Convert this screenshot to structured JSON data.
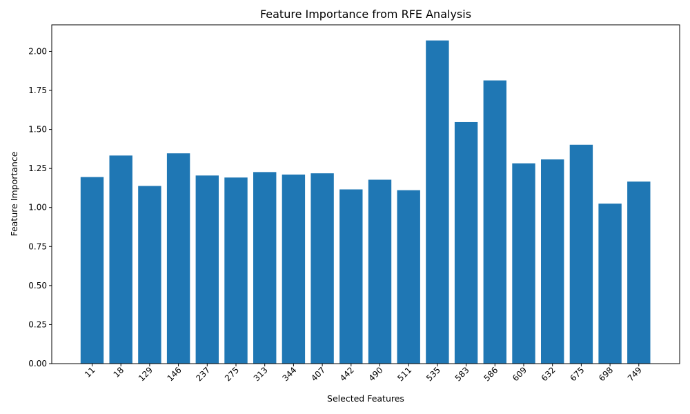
{
  "chart_data": {
    "type": "bar",
    "title": "Feature Importance from RFE Analysis",
    "xlabel": "Selected Features",
    "ylabel": "Feature Importance",
    "categories": [
      "11",
      "18",
      "129",
      "146",
      "237",
      "275",
      "313",
      "344",
      "407",
      "442",
      "490",
      "511",
      "535",
      "583",
      "586",
      "609",
      "632",
      "675",
      "698",
      "749"
    ],
    "values": [
      1.195,
      1.333,
      1.138,
      1.347,
      1.205,
      1.192,
      1.227,
      1.211,
      1.219,
      1.116,
      1.178,
      1.111,
      2.07,
      1.547,
      1.814,
      1.283,
      1.308,
      1.402,
      1.025,
      1.166
    ],
    "ylim": [
      0,
      2.17
    ],
    "yticks": [
      "0.00",
      "0.25",
      "0.50",
      "0.75",
      "1.00",
      "1.25",
      "1.50",
      "1.75",
      "2.00"
    ],
    "bar_color": "#1f77b4",
    "grid": false,
    "legend": "none"
  }
}
